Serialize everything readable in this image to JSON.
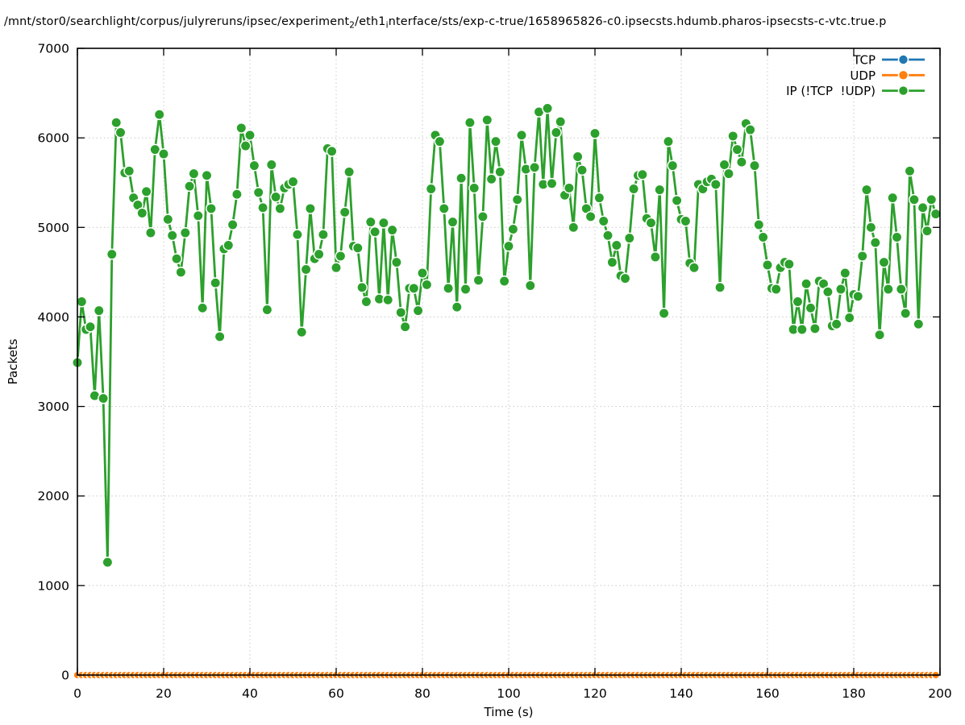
{
  "title": {
    "text": "/mnt/stor0/searchlight/corpus/julyreruns/ipsec/experiment_2/eth1_interface/sts/exp-c-true/1658965826-c0.ipsecsts.hdumb.pharos-ipsecsts-c-vtc.true.p",
    "segments": [
      {
        "t": "/mnt/stor0/searchlight/corpus/julyreruns/ipsec/experiment"
      },
      {
        "sub": "2"
      },
      {
        "t": "/eth1"
      },
      {
        "sub": "i"
      },
      {
        "t": "nterface/sts/exp-c-true/1658965826-c0.ipsecsts.hdumb.pharos-ipsecsts-c-vtc.true.p"
      }
    ]
  },
  "chart_data": {
    "type": "line",
    "title": "/mnt/stor0/searchlight/corpus/julyreruns/ipsec/experiment_2/eth1_interface/sts/exp-c-true/1658965826-c0.ipsecsts.hdumb.pharos-ipsecsts-c-vtc.true.p",
    "xlabel": "Time (s)",
    "ylabel": "Packets",
    "xlim": [
      0,
      200
    ],
    "ylim": [
      0,
      7000
    ],
    "x_ticks": [
      0,
      20,
      40,
      60,
      80,
      100,
      120,
      140,
      160,
      180,
      200
    ],
    "y_ticks": [
      0,
      1000,
      2000,
      3000,
      4000,
      5000,
      6000,
      7000
    ],
    "grid": {
      "style": "dotted",
      "color": "#c8c8c8"
    },
    "legend_position": "top-right",
    "series": [
      {
        "name": "TCP",
        "color": "#1f77b4",
        "marker": "filled-circle",
        "x_start": 0,
        "x_step": 1,
        "n_points": 200,
        "constant_value": 0
      },
      {
        "name": "UDP",
        "color": "#ff7f0e",
        "marker": "filled-circle",
        "x_start": 0,
        "x_step": 1,
        "n_points": 200,
        "constant_value": 0
      },
      {
        "name": "IP (!TCP  !UDP)",
        "color": "#2ca02c",
        "marker": "filled-circle",
        "x_start": 0,
        "x_step": 1,
        "values_approx": [
          3490,
          4170,
          3860,
          3890,
          3120,
          4070,
          3090,
          1260,
          4700,
          6170,
          6060,
          5610,
          5630,
          5330,
          5250,
          5160,
          5400,
          4940,
          5870,
          6260,
          5820,
          5090,
          4910,
          4650,
          4500,
          4940,
          5460,
          5600,
          5130,
          4100,
          5580,
          5210,
          4380,
          3780,
          4760,
          4800,
          5030,
          5370,
          6110,
          5910,
          6030,
          5690,
          5390,
          5220,
          4080,
          5700,
          5340,
          5210,
          5440,
          5480,
          5510,
          4920,
          3830,
          4530,
          5210,
          4650,
          4700,
          4920,
          5880,
          5850,
          4550,
          4680,
          5170,
          5620,
          4790,
          4770,
          4330,
          4170,
          5060,
          4950,
          4200,
          5050,
          4190,
          4970,
          4610,
          4050,
          3890,
          4320,
          4320,
          4070,
          4490,
          4360,
          5430,
          6030,
          5960,
          5210,
          4320,
          5060,
          4110,
          5550,
          4310,
          6170,
          5440,
          4410,
          5120,
          6200,
          5540,
          5960,
          5620,
          4400,
          4790,
          4980,
          5310,
          6030,
          5650,
          4350,
          5670,
          6290,
          5480,
          6330,
          5490,
          6060,
          6180,
          5360,
          5440,
          5000,
          5790,
          5640,
          5210,
          5120,
          6050,
          5330,
          5070,
          4910,
          4610,
          4800,
          4460,
          4430,
          4880,
          5430,
          5580,
          5590,
          5100,
          5050,
          4670,
          5420,
          4040,
          5960,
          5690,
          5300,
          5090,
          5070,
          4600,
          4550,
          5480,
          5430,
          5510,
          5540,
          5480,
          4330,
          5700,
          5600,
          6020,
          5870,
          5730,
          6160,
          6090,
          5690,
          5030,
          4890,
          4580,
          4320,
          4310,
          4550,
          4610,
          4590,
          3860,
          4170,
          3860,
          4370,
          4100,
          3870,
          4400,
          4370,
          4280,
          3900,
          3920,
          4310,
          4490,
          3990,
          4250,
          4230,
          4680,
          5420,
          5000,
          4830,
          3800,
          4610,
          4310,
          5330,
          4890,
          4310,
          4040,
          5630,
          5310,
          3920,
          5220,
          4960,
          5310,
          5150
        ]
      }
    ]
  },
  "colors": {
    "axis": "#000000",
    "grid": "#c8c8c8",
    "background": "#ffffff",
    "tcp": "#1f77b4",
    "udp": "#ff7f0e",
    "ip_other": "#2ca02c"
  }
}
